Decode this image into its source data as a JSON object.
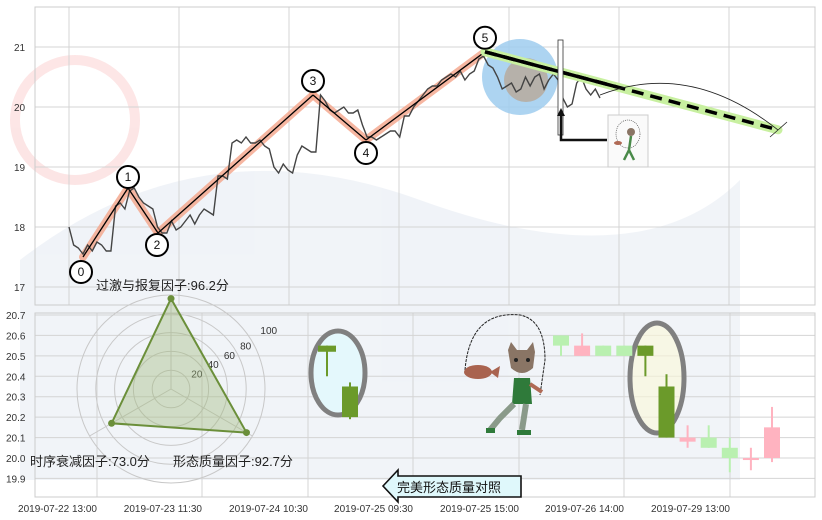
{
  "chart_data": [
    {
      "type": "line",
      "title": "",
      "y_ticks": [
        "21",
        "20",
        "19",
        "18",
        "17"
      ],
      "ylim": [
        16.68,
        21.67
      ],
      "grid": true,
      "price_series": [
        18.0,
        17.7,
        17.65,
        17.55,
        17.7,
        17.6,
        17.75,
        17.7,
        17.6,
        17.6,
        18.35,
        18.4,
        18.3,
        18.6,
        18.65,
        18.5,
        18.4,
        18.35,
        18.3,
        18.0,
        17.9,
        17.9,
        18.1,
        17.95,
        18.0,
        18.1,
        18.2,
        18.05,
        18.2,
        18.3,
        18.25,
        18.2,
        18.85,
        18.85,
        18.8,
        19.4,
        19.45,
        19.4,
        19.5,
        19.4,
        19.4,
        19.45,
        19.35,
        19.3,
        19.0,
        18.9,
        19.05,
        18.95,
        18.9,
        19.2,
        19.35,
        19.3,
        19.25,
        19.25,
        20.2,
        20.1,
        19.95,
        19.9,
        19.95,
        20.0,
        19.9,
        19.9,
        19.95,
        19.7,
        19.5,
        19.5,
        19.45,
        19.5,
        19.55,
        19.6,
        19.6,
        19.5,
        19.85,
        19.85,
        20.0,
        20.1,
        20.2,
        20.3,
        20.35,
        20.35,
        20.45,
        20.5,
        20.55,
        20.5,
        20.6,
        20.45,
        20.55,
        20.6,
        20.8,
        20.85,
        20.7,
        20.65,
        20.5,
        20.3,
        20.35,
        20.4,
        20.25,
        20.3,
        20.5,
        20.35,
        20.5,
        20.55,
        20.3,
        20.45,
        20.55,
        20.45,
        20.15,
        20.0,
        20.05,
        20.4,
        20.5,
        20.3,
        20.2,
        20.3,
        20.15
      ],
      "wave_points": [
        {
          "label": "0",
          "price": 17.5
        },
        {
          "label": "1",
          "price": 18.65
        },
        {
          "label": "2",
          "price": 17.9
        },
        {
          "label": "3",
          "price": 20.2
        },
        {
          "label": "4",
          "price": 19.45
        },
        {
          "label": "5",
          "price": 20.92
        }
      ],
      "projection_target": 19.62,
      "colors": {
        "price": "#444444",
        "wave_highlight": "#f4a58a",
        "projection": "#c8f0a0",
        "focus_circle": "#9fcdee"
      }
    },
    {
      "type": "candlestick",
      "y_ticks": [
        "20.7",
        "20.6",
        "20.5",
        "20.4",
        "20.3",
        "20.2",
        "20.1",
        "20.0",
        "19.9"
      ],
      "ylim": [
        19.83,
        20.71
      ],
      "x_ticks": [
        "2019-07-22 13:00",
        "2019-07-23 11:30",
        "2019-07-24 10:30",
        "2019-07-25 09:30",
        "2019-07-25 15:00",
        "2019-07-26 14:00",
        "2019-07-29 13:00"
      ],
      "candles": [
        {
          "o": 20.6,
          "h": 20.6,
          "l": 20.5,
          "c": 20.55,
          "style": "faded"
        },
        {
          "o": 20.5,
          "h": 20.61,
          "l": 20.5,
          "c": 20.55,
          "style": "faded"
        },
        {
          "o": 20.55,
          "h": 20.55,
          "l": 20.5,
          "c": 20.5,
          "style": "faded"
        },
        {
          "o": 20.55,
          "h": 20.55,
          "l": 20.5,
          "c": 20.5,
          "style": "faded"
        },
        {
          "o": 20.55,
          "h": 20.55,
          "l": 20.4,
          "c": 20.5,
          "style": "highlight"
        },
        {
          "o": 20.35,
          "h": 20.41,
          "l": 20.1,
          "c": 20.1,
          "style": "highlight"
        },
        {
          "o": 20.08,
          "h": 20.16,
          "l": 20.05,
          "c": 20.1,
          "style": "faded"
        },
        {
          "o": 20.1,
          "h": 20.16,
          "l": 20.05,
          "c": 20.05,
          "style": "faded"
        },
        {
          "o": 20.05,
          "h": 20.1,
          "l": 19.93,
          "c": 20.0,
          "style": "faded"
        },
        {
          "o": 19.99,
          "h": 20.05,
          "l": 19.94,
          "c": 20.0,
          "style": "faded"
        },
        {
          "o": 20.0,
          "h": 20.25,
          "l": 19.98,
          "c": 20.15,
          "style": "faded"
        }
      ],
      "reference_pattern": [
        {
          "o": 20.55,
          "h": 20.55,
          "l": 20.4,
          "c": 20.52
        },
        {
          "o": 20.35,
          "h": 20.37,
          "l": 20.19,
          "c": 20.2
        }
      ],
      "colors": {
        "up": "#ffb3c0",
        "down": "#b9f0b0",
        "highlight_down": "#6b9a2a"
      }
    },
    {
      "type": "radar",
      "ring_ticks": [
        "20",
        "40",
        "60",
        "80",
        "100"
      ],
      "rmax": 100,
      "axes": [
        {
          "name": "过激与报复因子",
          "value": 96.2,
          "label": "过激与报复因子:96.2分"
        },
        {
          "name": "形态质量因子",
          "value": 92.7,
          "label": "形态质量因子:92.7分"
        },
        {
          "name": "时序衰减因子",
          "value": 73.0,
          "label": "时序衰减因子:73.0分"
        }
      ],
      "colors": {
        "stroke": "#6b8f3a",
        "fill": "#9fb87a"
      }
    }
  ],
  "compare_button": {
    "label": "完美形态质量对照",
    "icon": "arrow-left-icon"
  }
}
